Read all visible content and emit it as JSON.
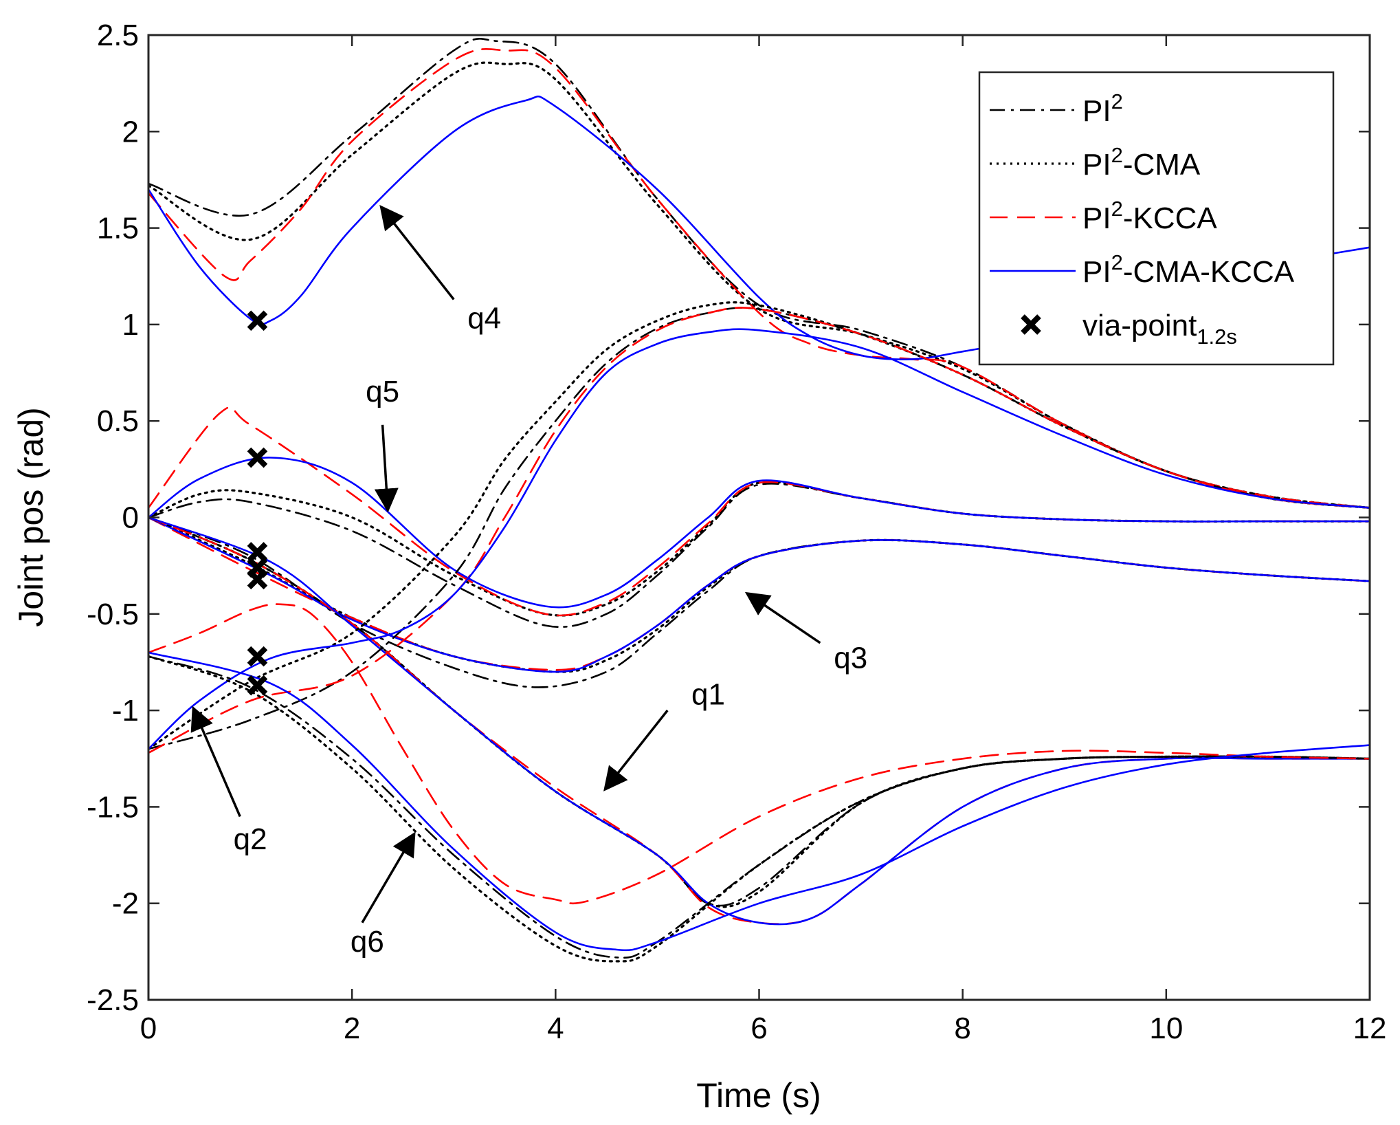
{
  "chart_data": {
    "type": "line",
    "title": "",
    "xlabel": "Time (s)",
    "ylabel": "Joint pos (rad)",
    "xlim": [
      0,
      12
    ],
    "ylim": [
      -2.5,
      2.5
    ],
    "xticks": [
      0,
      2,
      4,
      6,
      8,
      10,
      12
    ],
    "yticks": [
      -2.5,
      -2,
      -1.5,
      -1,
      -0.5,
      0,
      0.5,
      1,
      1.5,
      2,
      2.5
    ],
    "xtick_labels": [
      "0",
      "2",
      "4",
      "6",
      "8",
      "10",
      "12"
    ],
    "ytick_labels": [
      "-2.5",
      "-2",
      "-1.5",
      "-1",
      "-0.5",
      "0",
      "0.5",
      "1",
      "1.5",
      "2",
      "2.5"
    ],
    "grid": false,
    "legend_position": "top-right",
    "legend": [
      {
        "key": "pi2",
        "label": "PI",
        "sup": "2",
        "suffix": "",
        "color": "#000000",
        "style": "dashdot"
      },
      {
        "key": "pi2cma",
        "label": "PI",
        "sup": "2",
        "suffix": "-CMA",
        "color": "#000000",
        "style": "dotted"
      },
      {
        "key": "pi2kcca",
        "label": "PI",
        "sup": "2",
        "suffix": "-KCCA",
        "color": "#ff0000",
        "style": "dashed"
      },
      {
        "key": "pi2cmakcca",
        "label": "PI",
        "sup": "2",
        "suffix": "-CMA-KCCA",
        "color": "#0000ff",
        "style": "solid"
      },
      {
        "key": "via",
        "label": "via-point",
        "sub": "1.2s",
        "color": "#000000",
        "style": "marker"
      }
    ],
    "series": [
      {
        "name": "q4 PI2",
        "method": "pi2",
        "x": [
          0,
          1,
          2,
          3,
          3.4,
          4,
          5,
          6,
          7,
          8,
          9,
          10,
          11,
          12
        ],
        "y": [
          1.73,
          1.57,
          1.98,
          2.42,
          2.47,
          2.35,
          1.65,
          1.1,
          0.97,
          0.78,
          0.48,
          0.24,
          0.11,
          0.05
        ]
      },
      {
        "name": "q4 PI2-CMA",
        "method": "pi2cma",
        "x": [
          0,
          1,
          2,
          3,
          3.5,
          4,
          5,
          6,
          7,
          8,
          9,
          10,
          11,
          12
        ],
        "y": [
          1.72,
          1.44,
          1.88,
          2.3,
          2.35,
          2.27,
          1.62,
          1.08,
          0.95,
          0.77,
          0.48,
          0.24,
          0.11,
          0.05
        ]
      },
      {
        "name": "q4 PI2-KCCA",
        "method": "pi2kcca",
        "x": [
          0,
          0.75,
          1,
          1.5,
          2,
          3,
          3.5,
          4,
          5,
          6,
          6.5,
          7,
          7.5,
          8,
          9,
          10,
          11,
          12
        ],
        "y": [
          1.68,
          1.25,
          1.33,
          1.6,
          1.95,
          2.37,
          2.42,
          2.33,
          1.65,
          1.06,
          0.9,
          0.84,
          0.82,
          0.78,
          0.48,
          0.24,
          0.11,
          0.05
        ]
      },
      {
        "name": "q4 PI2-CMA-KCCA",
        "method": "pi2cmakcca",
        "x": [
          0,
          0.5,
          1,
          1.2,
          1.5,
          2,
          3,
          3.7,
          4,
          5,
          6,
          6.5,
          7,
          7.5,
          8,
          9,
          10,
          11,
          12
        ],
        "y": [
          1.7,
          1.3,
          1.03,
          1.02,
          1.15,
          1.5,
          2.0,
          2.16,
          2.13,
          1.7,
          1.14,
          0.94,
          0.84,
          0.82,
          0.86,
          0.96,
          1.12,
          1.3,
          1.4
        ]
      },
      {
        "name": "q5 PI2",
        "method": "pi2",
        "x": [
          0,
          0.5,
          1,
          2,
          3,
          3.9,
          4.5,
          5,
          5.5,
          6,
          7,
          8,
          9,
          10,
          11,
          12
        ],
        "y": [
          0,
          0.08,
          0.08,
          -0.07,
          -0.35,
          -0.56,
          -0.5,
          -0.3,
          -0.05,
          0.17,
          0.1,
          0.02,
          -0.01,
          -0.02,
          -0.02,
          -0.02
        ]
      },
      {
        "name": "q5 PI2-CMA",
        "method": "pi2cma",
        "x": [
          0,
          0.5,
          1,
          2,
          3,
          3.9,
          4.5,
          5,
          5.5,
          6,
          7,
          8,
          9,
          10,
          11,
          12
        ],
        "y": [
          0,
          0.12,
          0.13,
          0.0,
          -0.3,
          -0.5,
          -0.45,
          -0.28,
          -0.04,
          0.18,
          0.1,
          0.02,
          -0.01,
          -0.02,
          -0.02,
          -0.02
        ]
      },
      {
        "name": "q5 PI2-KCCA",
        "method": "pi2kcca",
        "x": [
          0,
          0.7,
          1,
          2,
          3,
          3.9,
          4.5,
          5,
          5.5,
          6,
          7,
          8,
          9,
          10,
          11,
          12
        ],
        "y": [
          0.05,
          0.54,
          0.48,
          0.12,
          -0.28,
          -0.5,
          -0.44,
          -0.26,
          -0.03,
          0.18,
          0.1,
          0.02,
          -0.01,
          -0.02,
          -0.02,
          -0.02
        ]
      },
      {
        "name": "q5 PI2-CMA-KCCA",
        "method": "pi2cmakcca",
        "x": [
          0,
          0.5,
          1.2,
          2,
          3,
          3.9,
          4.5,
          5,
          5.5,
          6,
          7,
          8,
          9,
          10,
          11,
          12
        ],
        "y": [
          0,
          0.2,
          0.31,
          0.18,
          -0.27,
          -0.46,
          -0.4,
          -0.22,
          0.0,
          0.19,
          0.1,
          0.02,
          -0.01,
          -0.02,
          -0.02,
          -0.02
        ]
      },
      {
        "name": "q3 PI2",
        "method": "pi2",
        "x": [
          0,
          1,
          2,
          3,
          3.8,
          4.5,
          5,
          5.5,
          6,
          7,
          8,
          9,
          10,
          11,
          12
        ],
        "y": [
          0,
          -0.2,
          -0.55,
          -0.78,
          -0.88,
          -0.8,
          -0.6,
          -0.38,
          -0.2,
          -0.12,
          -0.14,
          -0.2,
          -0.26,
          -0.3,
          -0.33
        ]
      },
      {
        "name": "q3 PI2-CMA",
        "method": "pi2cma",
        "x": [
          0,
          1,
          2,
          3,
          4,
          4.5,
          5,
          5.5,
          6,
          7,
          8,
          9,
          10,
          11,
          12
        ],
        "y": [
          0,
          -0.24,
          -0.52,
          -0.72,
          -0.8,
          -0.74,
          -0.58,
          -0.36,
          -0.2,
          -0.12,
          -0.14,
          -0.2,
          -0.26,
          -0.3,
          -0.33
        ]
      },
      {
        "name": "q3 PI2-KCCA",
        "method": "pi2kcca",
        "x": [
          0,
          1,
          2,
          3,
          4,
          4.5,
          5,
          5.5,
          6,
          7,
          8,
          9,
          10,
          11,
          12
        ],
        "y": [
          0,
          -0.27,
          -0.52,
          -0.72,
          -0.79,
          -0.72,
          -0.56,
          -0.35,
          -0.2,
          -0.12,
          -0.14,
          -0.2,
          -0.26,
          -0.3,
          -0.33
        ]
      },
      {
        "name": "q3 PI2-CMA-KCCA",
        "method": "pi2cmakcca",
        "x": [
          0,
          1.2,
          2,
          3,
          4,
          4.5,
          5,
          5.5,
          6,
          7,
          8,
          9,
          10,
          11,
          12
        ],
        "y": [
          0,
          -0.3,
          -0.53,
          -0.72,
          -0.8,
          -0.72,
          -0.56,
          -0.35,
          -0.2,
          -0.12,
          -0.14,
          -0.2,
          -0.26,
          -0.3,
          -0.33
        ]
      },
      {
        "name": "q1 PI2",
        "method": "pi2",
        "x": [
          0,
          1,
          2,
          3,
          4,
          5,
          5.5,
          6,
          7,
          8,
          9,
          10,
          11,
          12
        ],
        "y": [
          0,
          -0.22,
          -0.55,
          -1.0,
          -1.42,
          -1.75,
          -2.0,
          -1.92,
          -1.48,
          -1.3,
          -1.25,
          -1.24,
          -1.24,
          -1.25
        ]
      },
      {
        "name": "q1 PI2-CMA",
        "method": "pi2cma",
        "x": [
          0,
          1,
          2,
          3,
          4,
          5,
          5.5,
          6,
          7,
          8,
          9,
          10,
          11,
          12
        ],
        "y": [
          0,
          -0.22,
          -0.55,
          -1.0,
          -1.42,
          -1.75,
          -2.0,
          -1.94,
          -1.48,
          -1.3,
          -1.25,
          -1.24,
          -1.24,
          -1.25
        ]
      },
      {
        "name": "q1 PI2-KCCA",
        "method": "pi2kcca",
        "x": [
          0,
          1,
          2,
          3,
          4,
          5,
          5.5,
          6,
          6.5,
          7,
          8,
          9,
          10,
          11,
          12
        ],
        "y": [
          0,
          -0.22,
          -0.55,
          -1.0,
          -1.4,
          -1.75,
          -2.02,
          -2.1,
          -2.08,
          -1.9,
          -1.5,
          -1.3,
          -1.25,
          -1.25,
          -1.25
        ]
      },
      {
        "name": "q1 PI2-CMA-KCCA",
        "method": "pi2cmakcca",
        "x": [
          0,
          1.2,
          2,
          3,
          4,
          5,
          5.5,
          6,
          6.5,
          7,
          8,
          9,
          10,
          11,
          12
        ],
        "y": [
          0,
          -0.23,
          -0.56,
          -1.0,
          -1.42,
          -1.75,
          -2.0,
          -2.1,
          -2.08,
          -1.9,
          -1.5,
          -1.3,
          -1.25,
          -1.25,
          -1.25
        ]
      },
      {
        "name": "q2 PI2",
        "method": "pi2",
        "x": [
          0,
          1,
          2,
          3,
          3.5,
          4,
          4.5,
          5,
          5.5,
          6,
          7,
          8,
          9,
          10,
          11,
          12
        ],
        "y": [
          -1.2,
          -1.05,
          -0.8,
          -0.3,
          0.15,
          0.5,
          0.8,
          0.98,
          1.06,
          1.08,
          0.95,
          0.74,
          0.47,
          0.24,
          0.1,
          0.05
        ]
      },
      {
        "name": "q2 PI2-CMA",
        "method": "pi2cma",
        "x": [
          0,
          1,
          2,
          3,
          3.5,
          4,
          4.5,
          5,
          5.5,
          6,
          7,
          8,
          9,
          10,
          11,
          12
        ],
        "y": [
          -1.2,
          -0.85,
          -0.6,
          -0.1,
          0.3,
          0.6,
          0.87,
          1.02,
          1.1,
          1.1,
          0.95,
          0.74,
          0.47,
          0.24,
          0.1,
          0.05
        ]
      },
      {
        "name": "q2 PI2-KCCA",
        "method": "pi2kcca",
        "x": [
          0,
          1,
          2,
          3,
          3.5,
          4,
          4.5,
          5,
          5.5,
          6,
          7,
          8,
          9,
          10,
          11,
          12
        ],
        "y": [
          -1.22,
          -0.95,
          -0.82,
          -0.4,
          0.0,
          0.45,
          0.78,
          0.97,
          1.06,
          1.08,
          0.95,
          0.74,
          0.47,
          0.24,
          0.1,
          0.05
        ]
      },
      {
        "name": "q2 PI2-CMA-KCCA",
        "method": "pi2cmakcca",
        "x": [
          0,
          0.5,
          1.2,
          2,
          2.5,
          3,
          3.5,
          4,
          4.5,
          5,
          5.5,
          6,
          7,
          8,
          9,
          10,
          11,
          12
        ],
        "y": [
          -1.2,
          -0.95,
          -0.73,
          -0.65,
          -0.58,
          -0.4,
          -0.05,
          0.4,
          0.75,
          0.9,
          0.96,
          0.97,
          0.88,
          0.65,
          0.42,
          0.22,
          0.1,
          0.05
        ]
      },
      {
        "name": "q6 PI2",
        "method": "pi2",
        "x": [
          0,
          1,
          2,
          3,
          4,
          4.6,
          5,
          6,
          7,
          8,
          9,
          10,
          11,
          12
        ],
        "y": [
          -0.72,
          -0.88,
          -1.25,
          -1.75,
          -2.17,
          -2.28,
          -2.2,
          -1.8,
          -1.47,
          -1.3,
          -1.25,
          -1.24,
          -1.24,
          -1.25
        ]
      },
      {
        "name": "q6 PI2-CMA",
        "method": "pi2cma",
        "x": [
          0,
          1,
          2,
          3,
          4,
          4.6,
          5,
          6,
          7,
          8,
          9,
          10,
          11,
          12
        ],
        "y": [
          -0.72,
          -0.9,
          -1.3,
          -1.82,
          -2.22,
          -2.3,
          -2.22,
          -1.8,
          -1.47,
          -1.3,
          -1.25,
          -1.24,
          -1.24,
          -1.25
        ]
      },
      {
        "name": "q6 PI2-KCCA",
        "method": "pi2kcca",
        "x": [
          0,
          0.5,
          1,
          1.3,
          1.6,
          2,
          2.5,
          3,
          3.5,
          4,
          4.3,
          5,
          6,
          7,
          8,
          9,
          10,
          11,
          12
        ],
        "y": [
          -0.7,
          -0.6,
          -0.48,
          -0.45,
          -0.5,
          -0.75,
          -1.2,
          -1.62,
          -1.9,
          -1.98,
          -1.99,
          -1.85,
          -1.55,
          -1.35,
          -1.25,
          -1.21,
          -1.22,
          -1.24,
          -1.25
        ]
      },
      {
        "name": "q6 PI2-CMA-KCCA",
        "method": "pi2cmakcca",
        "x": [
          0,
          1.2,
          2,
          3,
          4,
          4.6,
          5,
          6,
          7,
          8,
          9,
          10,
          11,
          12
        ],
        "y": [
          -0.7,
          -0.86,
          -1.18,
          -1.72,
          -2.15,
          -2.24,
          -2.2,
          -2.0,
          -1.85,
          -1.6,
          -1.4,
          -1.28,
          -1.22,
          -1.18
        ]
      }
    ],
    "via_points": {
      "x": [
        1.07,
        1.07,
        1.07,
        1.07,
        1.07,
        1.07,
        1.07
      ],
      "y": [
        1.02,
        0.31,
        -0.18,
        -0.26,
        -0.32,
        -0.72,
        -0.87
      ]
    },
    "annotations": [
      {
        "text": "q4",
        "x": 3.3,
        "y": 0.98,
        "arrow_from": [
          3.0,
          1.13
        ],
        "arrow_to": [
          2.3,
          1.6
        ]
      },
      {
        "text": "q5",
        "x": 2.3,
        "y": 0.6,
        "arrow_from": [
          2.3,
          0.48
        ],
        "arrow_to": [
          2.35,
          0.05
        ]
      },
      {
        "text": "q3",
        "x": 6.9,
        "y": -0.78,
        "arrow_from": [
          6.6,
          -0.65
        ],
        "arrow_to": [
          5.9,
          -0.4
        ]
      },
      {
        "text": "q1",
        "x": 5.5,
        "y": -0.97,
        "arrow_from": [
          5.1,
          -1.0
        ],
        "arrow_to": [
          4.5,
          -1.4
        ]
      },
      {
        "text": "q2",
        "x": 1.0,
        "y": -1.72,
        "arrow_from": [
          0.9,
          -1.55
        ],
        "arrow_to": [
          0.45,
          -1.0
        ]
      },
      {
        "text": "q6",
        "x": 2.15,
        "y": -2.25,
        "arrow_from": [
          2.1,
          -2.1
        ],
        "arrow_to": [
          2.6,
          -1.65
        ]
      }
    ]
  }
}
